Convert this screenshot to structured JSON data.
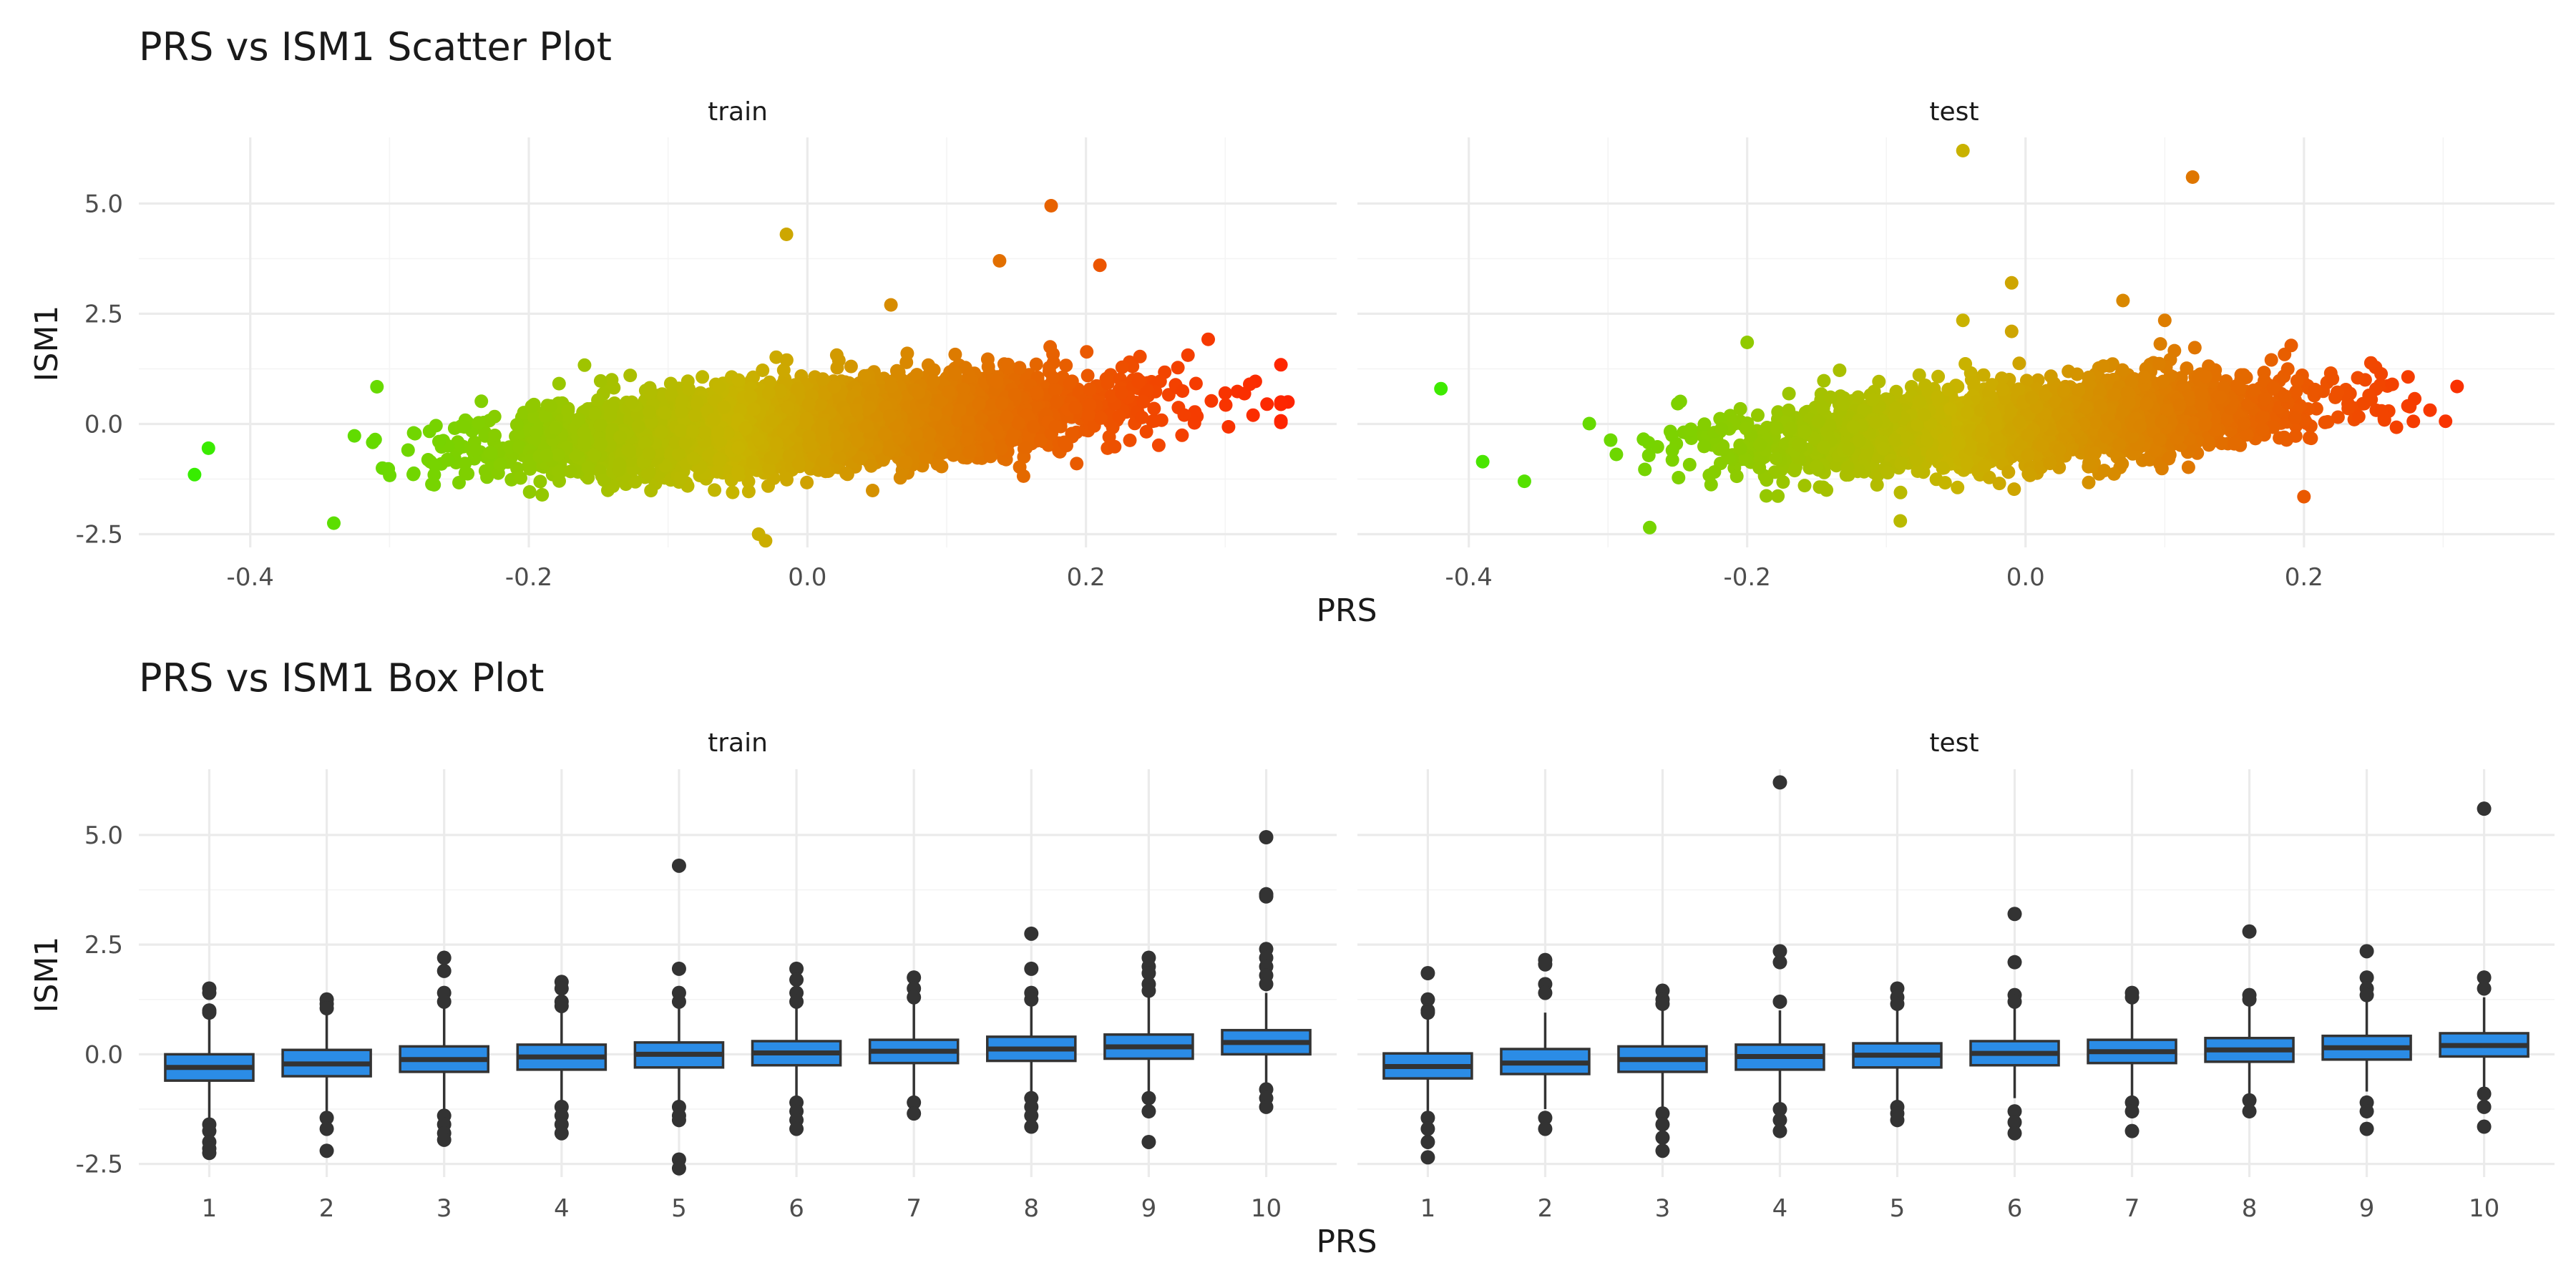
{
  "chart_data": [
    {
      "type": "scatter",
      "title": "PRS vs ISM1 Scatter Plot",
      "xlabel": "PRS",
      "ylabel": "ISM1",
      "facets": [
        "train",
        "test"
      ],
      "xlim": [
        -0.48,
        0.38
      ],
      "ylim": [
        -2.8,
        6.5
      ],
      "x_ticks": [
        -0.4,
        -0.2,
        0.0,
        0.2
      ],
      "x_tick_labels": [
        "-0.4",
        "-0.2",
        "0.0",
        "0.2"
      ],
      "y_ticks": [
        -2.5,
        0.0,
        2.5,
        5.0
      ],
      "y_tick_labels": [
        "-2.5",
        "0.0",
        "2.5",
        "5.0"
      ],
      "grid": true,
      "color_scale": {
        "low": "#33ee00",
        "mid": "#c8b400",
        "high": "#ff2200",
        "by": "PRS"
      },
      "panels": [
        {
          "name": "train",
          "cloud": {
            "n": 5000,
            "x_mean": 0.0,
            "x_sd": 0.1,
            "slope": 2.2,
            "y_sd": 0.45,
            "x_range": [
              -0.45,
              0.34
            ],
            "seed": 11
          },
          "highlights": [
            [
              -0.015,
              4.3
            ],
            [
              0.175,
              4.95
            ],
            [
              0.138,
              3.7
            ],
            [
              0.21,
              3.6
            ],
            [
              0.06,
              2.7
            ],
            [
              -0.34,
              -2.25
            ],
            [
              -0.03,
              -2.65
            ],
            [
              -0.035,
              -2.5
            ],
            [
              0.33,
              0.45
            ],
            [
              0.345,
              0.5
            ],
            [
              0.34,
              0.45
            ],
            [
              0.32,
              0.2
            ],
            [
              -0.44,
              -1.15
            ],
            [
              -0.43,
              -0.55
            ],
            [
              0.3,
              0.7
            ]
          ]
        },
        {
          "name": "test",
          "cloud": {
            "n": 2500,
            "x_mean": 0.0,
            "x_sd": 0.1,
            "slope": 2.2,
            "y_sd": 0.45,
            "x_range": [
              -0.39,
              0.31
            ],
            "seed": 23
          },
          "highlights": [
            [
              -0.045,
              6.2
            ],
            [
              0.12,
              5.6
            ],
            [
              -0.01,
              3.2
            ],
            [
              0.07,
              2.8
            ],
            [
              -0.045,
              2.35
            ],
            [
              -0.42,
              0.8
            ],
            [
              -0.27,
              -2.35
            ],
            [
              -0.01,
              2.1
            ],
            [
              0.31,
              0.85
            ],
            [
              -0.36,
              -1.3
            ],
            [
              0.1,
              2.35
            ],
            [
              -0.2,
              1.85
            ],
            [
              -0.09,
              -2.2
            ],
            [
              0.2,
              -1.65
            ]
          ]
        }
      ]
    },
    {
      "type": "box",
      "title": "PRS vs ISM1 Box Plot",
      "xlabel": "PRS",
      "ylabel": "ISM1",
      "facets": [
        "train",
        "test"
      ],
      "categories": [
        "1",
        "2",
        "3",
        "4",
        "5",
        "6",
        "7",
        "8",
        "9",
        "10"
      ],
      "ylim": [
        -2.8,
        6.5
      ],
      "y_ticks": [
        -2.5,
        0.0,
        2.5,
        5.0
      ],
      "y_tick_labels": [
        "-2.5",
        "0.0",
        "2.5",
        "5.0"
      ],
      "fill": "#2b8ce6",
      "grid": true,
      "panels": [
        {
          "name": "train",
          "boxes": [
            {
              "q1": -0.6,
              "median": -0.3,
              "q3": 0.0,
              "lower": -1.45,
              "upper": 0.85,
              "outliers": [
                1.5,
                1.4,
                1.0,
                0.95,
                -1.6,
                -1.75,
                -2.0,
                -2.25,
                -2.15
              ]
            },
            {
              "q1": -0.5,
              "median": -0.22,
              "q3": 0.1,
              "lower": -1.35,
              "upper": 0.95,
              "outliers": [
                1.25,
                1.15,
                1.05,
                -1.45,
                -1.7,
                -2.2
              ]
            },
            {
              "q1": -0.4,
              "median": -0.12,
              "q3": 0.18,
              "lower": -1.25,
              "upper": 1.05,
              "outliers": [
                2.2,
                1.9,
                1.4,
                1.2,
                -1.4,
                -1.6,
                -1.8,
                -1.95
              ]
            },
            {
              "q1": -0.35,
              "median": -0.06,
              "q3": 0.22,
              "lower": -1.15,
              "upper": 1.05,
              "outliers": [
                1.65,
                1.5,
                1.2,
                1.1,
                -1.2,
                -1.4,
                -1.6,
                -1.8
              ]
            },
            {
              "q1": -0.3,
              "median": 0.0,
              "q3": 0.27,
              "lower": -1.1,
              "upper": 1.1,
              "outliers": [
                4.3,
                1.95,
                1.4,
                1.2,
                -1.2,
                -1.4,
                -1.5,
                -2.4,
                -2.6
              ]
            },
            {
              "q1": -0.25,
              "median": 0.03,
              "q3": 0.3,
              "lower": -1.05,
              "upper": 1.1,
              "outliers": [
                1.95,
                1.7,
                1.4,
                1.2,
                -1.1,
                -1.3,
                -1.5,
                -1.7
              ]
            },
            {
              "q1": -0.2,
              "median": 0.07,
              "q3": 0.33,
              "lower": -1.0,
              "upper": 1.15,
              "outliers": [
                1.75,
                1.5,
                1.3,
                -1.1,
                -1.35
              ]
            },
            {
              "q1": -0.15,
              "median": 0.12,
              "q3": 0.4,
              "lower": -0.95,
              "upper": 1.2,
              "outliers": [
                2.75,
                1.95,
                1.4,
                1.25,
                -1.0,
                -1.2,
                -1.4,
                -1.65
              ]
            },
            {
              "q1": -0.1,
              "median": 0.17,
              "q3": 0.45,
              "lower": -0.85,
              "upper": 1.3,
              "outliers": [
                2.2,
                2.0,
                1.85,
                1.6,
                1.45,
                -1.0,
                -1.3,
                -2.0
              ]
            },
            {
              "q1": 0.0,
              "median": 0.27,
              "q3": 0.55,
              "lower": -0.75,
              "upper": 1.4,
              "outliers": [
                4.95,
                3.65,
                3.6,
                2.4,
                2.2,
                2.0,
                1.8,
                1.6,
                -0.8,
                -1.0,
                -1.2
              ]
            }
          ]
        },
        {
          "name": "test",
          "boxes": [
            {
              "q1": -0.55,
              "median": -0.28,
              "q3": 0.02,
              "lower": -1.35,
              "upper": 0.85,
              "outliers": [
                1.85,
                1.25,
                1.0,
                0.95,
                -1.45,
                -1.7,
                -2.0,
                -2.35
              ]
            },
            {
              "q1": -0.45,
              "median": -0.2,
              "q3": 0.12,
              "lower": -1.25,
              "upper": 0.95,
              "outliers": [
                2.15,
                2.05,
                1.6,
                1.4,
                -1.45,
                -1.7
              ]
            },
            {
              "q1": -0.4,
              "median": -0.12,
              "q3": 0.18,
              "lower": -1.2,
              "upper": 1.0,
              "outliers": [
                1.45,
                1.25,
                1.15,
                -1.35,
                -1.6,
                -1.9,
                -2.2
              ]
            },
            {
              "q1": -0.35,
              "median": -0.05,
              "q3": 0.22,
              "lower": -1.1,
              "upper": 1.0,
              "outliers": [
                6.2,
                2.35,
                2.1,
                1.2,
                -1.25,
                -1.5,
                -1.75
              ]
            },
            {
              "q1": -0.3,
              "median": -0.02,
              "q3": 0.25,
              "lower": -1.05,
              "upper": 1.05,
              "outliers": [
                1.5,
                1.3,
                1.15,
                -1.2,
                -1.35,
                -1.5
              ]
            },
            {
              "q1": -0.25,
              "median": 0.02,
              "q3": 0.3,
              "lower": -1.0,
              "upper": 1.1,
              "outliers": [
                3.2,
                2.1,
                1.35,
                1.2,
                -1.3,
                -1.55,
                -1.8
              ]
            },
            {
              "q1": -0.2,
              "median": 0.06,
              "q3": 0.33,
              "lower": -0.95,
              "upper": 1.15,
              "outliers": [
                1.4,
                1.3,
                -1.1,
                -1.3,
                -1.75
              ]
            },
            {
              "q1": -0.17,
              "median": 0.1,
              "q3": 0.37,
              "lower": -0.9,
              "upper": 1.2,
              "outliers": [
                2.8,
                1.35,
                1.25,
                -1.05,
                -1.3
              ]
            },
            {
              "q1": -0.12,
              "median": 0.15,
              "q3": 0.42,
              "lower": -0.85,
              "upper": 1.25,
              "outliers": [
                2.35,
                1.75,
                1.5,
                1.35,
                -1.1,
                -1.3,
                -1.7
              ]
            },
            {
              "q1": -0.05,
              "median": 0.2,
              "q3": 0.48,
              "lower": -0.8,
              "upper": 1.3,
              "outliers": [
                5.6,
                1.75,
                1.5,
                -0.9,
                -1.2,
                -1.65
              ]
            }
          ]
        }
      ]
    }
  ]
}
